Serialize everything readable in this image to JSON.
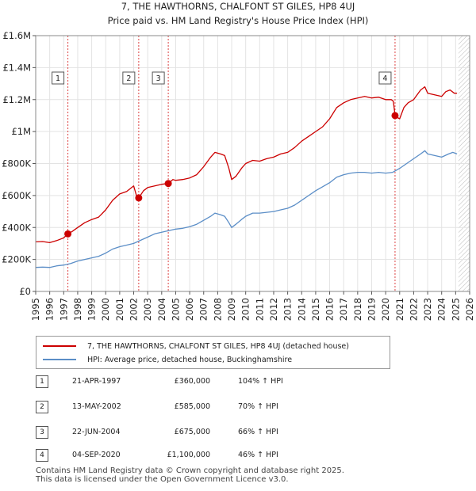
{
  "chart_data": {
    "type": "line",
    "title": "7, THE HAWTHORNS, CHALFONT ST GILES, HP8 4UJ",
    "subtitle": "Price paid vs. HM Land Registry's House Price Index (HPI)",
    "xlim": [
      1995,
      2026
    ],
    "ylim": [
      0,
      1600000
    ],
    "x_ticks": [
      "1995",
      "1996",
      "1997",
      "1998",
      "1999",
      "2000",
      "2001",
      "2002",
      "2003",
      "2004",
      "2005",
      "2006",
      "2007",
      "2008",
      "2009",
      "2010",
      "2011",
      "2012",
      "2013",
      "2014",
      "2015",
      "2016",
      "2017",
      "2018",
      "2019",
      "2020",
      "2021",
      "2022",
      "2023",
      "2024",
      "2025",
      "2026"
    ],
    "y_ticks": [
      {
        "value": 0,
        "label": "£0"
      },
      {
        "value": 200000,
        "label": "£200K"
      },
      {
        "value": 400000,
        "label": "£400K"
      },
      {
        "value": 600000,
        "label": "£600K"
      },
      {
        "value": 800000,
        "label": "£800K"
      },
      {
        "value": 1000000,
        "label": "£1M"
      },
      {
        "value": 1200000,
        "label": "£1.2M"
      },
      {
        "value": 1400000,
        "label": "£1.4M"
      },
      {
        "value": 1600000,
        "label": "£1.6M"
      }
    ],
    "grid": true,
    "future_hatch_from": 2025.2,
    "series": [
      {
        "name": "7, THE HAWTHORNS, CHALFONT ST GILES, HP8 4UJ (detached house)",
        "color": "#cc0000",
        "points": [
          [
            1995.0,
            310000
          ],
          [
            1995.5,
            312000
          ],
          [
            1996.0,
            305000
          ],
          [
            1996.5,
            318000
          ],
          [
            1997.0,
            335000
          ],
          [
            1997.3,
            360000
          ],
          [
            1997.6,
            375000
          ],
          [
            1998.0,
            400000
          ],
          [
            1998.5,
            430000
          ],
          [
            1999.0,
            450000
          ],
          [
            1999.5,
            465000
          ],
          [
            2000.0,
            510000
          ],
          [
            2000.5,
            570000
          ],
          [
            2001.0,
            610000
          ],
          [
            2001.5,
            625000
          ],
          [
            2002.0,
            660000
          ],
          [
            2002.2,
            600000
          ],
          [
            2002.36,
            585000
          ],
          [
            2002.7,
            630000
          ],
          [
            2003.0,
            650000
          ],
          [
            2003.5,
            660000
          ],
          [
            2004.0,
            670000
          ],
          [
            2004.47,
            675000
          ],
          [
            2004.8,
            700000
          ],
          [
            2005.0,
            695000
          ],
          [
            2005.5,
            700000
          ],
          [
            2006.0,
            710000
          ],
          [
            2006.5,
            730000
          ],
          [
            2007.0,
            780000
          ],
          [
            2007.5,
            840000
          ],
          [
            2007.8,
            870000
          ],
          [
            2008.2,
            860000
          ],
          [
            2008.5,
            850000
          ],
          [
            2008.8,
            770000
          ],
          [
            2009.0,
            700000
          ],
          [
            2009.3,
            720000
          ],
          [
            2009.7,
            770000
          ],
          [
            2010.0,
            800000
          ],
          [
            2010.5,
            820000
          ],
          [
            2011.0,
            815000
          ],
          [
            2011.5,
            830000
          ],
          [
            2012.0,
            840000
          ],
          [
            2012.5,
            860000
          ],
          [
            2013.0,
            870000
          ],
          [
            2013.5,
            900000
          ],
          [
            2014.0,
            940000
          ],
          [
            2014.5,
            970000
          ],
          [
            2015.0,
            1000000
          ],
          [
            2015.5,
            1030000
          ],
          [
            2016.0,
            1080000
          ],
          [
            2016.5,
            1150000
          ],
          [
            2017.0,
            1180000
          ],
          [
            2017.5,
            1200000
          ],
          [
            2018.0,
            1210000
          ],
          [
            2018.5,
            1220000
          ],
          [
            2019.0,
            1210000
          ],
          [
            2019.5,
            1215000
          ],
          [
            2020.0,
            1200000
          ],
          [
            2020.4,
            1200000
          ],
          [
            2020.55,
            1190000
          ],
          [
            2020.67,
            1100000
          ],
          [
            2020.8,
            1090000
          ],
          [
            2021.0,
            1080000
          ],
          [
            2021.3,
            1150000
          ],
          [
            2021.6,
            1180000
          ],
          [
            2022.0,
            1200000
          ],
          [
            2022.5,
            1260000
          ],
          [
            2022.8,
            1280000
          ],
          [
            2023.0,
            1240000
          ],
          [
            2023.5,
            1230000
          ],
          [
            2024.0,
            1220000
          ],
          [
            2024.3,
            1250000
          ],
          [
            2024.6,
            1260000
          ],
          [
            2024.9,
            1240000
          ],
          [
            2025.1,
            1240000
          ]
        ]
      },
      {
        "name": "HPI: Average price, detached house, Buckinghamshire",
        "color": "#5b8ec7",
        "points": [
          [
            1995.0,
            150000
          ],
          [
            1995.5,
            152000
          ],
          [
            1996.0,
            150000
          ],
          [
            1996.5,
            160000
          ],
          [
            1997.0,
            165000
          ],
          [
            1997.5,
            175000
          ],
          [
            1998.0,
            190000
          ],
          [
            1998.5,
            200000
          ],
          [
            1999.0,
            210000
          ],
          [
            1999.5,
            220000
          ],
          [
            2000.0,
            240000
          ],
          [
            2000.5,
            265000
          ],
          [
            2001.0,
            280000
          ],
          [
            2001.5,
            290000
          ],
          [
            2002.0,
            300000
          ],
          [
            2002.5,
            320000
          ],
          [
            2003.0,
            340000
          ],
          [
            2003.5,
            360000
          ],
          [
            2004.0,
            370000
          ],
          [
            2004.5,
            380000
          ],
          [
            2005.0,
            390000
          ],
          [
            2005.5,
            395000
          ],
          [
            2006.0,
            405000
          ],
          [
            2006.5,
            420000
          ],
          [
            2007.0,
            445000
          ],
          [
            2007.5,
            470000
          ],
          [
            2007.8,
            490000
          ],
          [
            2008.2,
            480000
          ],
          [
            2008.5,
            470000
          ],
          [
            2008.8,
            430000
          ],
          [
            2009.0,
            400000
          ],
          [
            2009.3,
            420000
          ],
          [
            2009.7,
            450000
          ],
          [
            2010.0,
            470000
          ],
          [
            2010.5,
            490000
          ],
          [
            2011.0,
            490000
          ],
          [
            2011.5,
            495000
          ],
          [
            2012.0,
            500000
          ],
          [
            2012.5,
            510000
          ],
          [
            2013.0,
            520000
          ],
          [
            2013.5,
            540000
          ],
          [
            2014.0,
            570000
          ],
          [
            2014.5,
            600000
          ],
          [
            2015.0,
            630000
          ],
          [
            2015.5,
            655000
          ],
          [
            2016.0,
            680000
          ],
          [
            2016.5,
            715000
          ],
          [
            2017.0,
            730000
          ],
          [
            2017.5,
            740000
          ],
          [
            2018.0,
            745000
          ],
          [
            2018.5,
            745000
          ],
          [
            2019.0,
            740000
          ],
          [
            2019.5,
            745000
          ],
          [
            2020.0,
            740000
          ],
          [
            2020.5,
            745000
          ],
          [
            2021.0,
            770000
          ],
          [
            2021.5,
            800000
          ],
          [
            2022.0,
            830000
          ],
          [
            2022.5,
            860000
          ],
          [
            2022.8,
            880000
          ],
          [
            2023.0,
            860000
          ],
          [
            2023.5,
            850000
          ],
          [
            2024.0,
            840000
          ],
          [
            2024.5,
            860000
          ],
          [
            2024.8,
            870000
          ],
          [
            2025.1,
            860000
          ]
        ]
      }
    ],
    "sales": [
      {
        "num": "1",
        "year": 1997.3,
        "price": 360000,
        "date": "21-APR-1997",
        "price_label": "£360,000",
        "hpi": "104% ↑ HPI"
      },
      {
        "num": "2",
        "year": 2002.36,
        "price": 585000,
        "date": "13-MAY-2002",
        "price_label": "£585,000",
        "hpi": "70% ↑ HPI"
      },
      {
        "num": "3",
        "year": 2004.47,
        "price": 675000,
        "date": "22-JUN-2004",
        "price_label": "£675,000",
        "hpi": "66% ↑ HPI"
      },
      {
        "num": "4",
        "year": 2020.67,
        "price": 1100000,
        "date": "04-SEP-2020",
        "price_label": "£1,100,000",
        "hpi": "46% ↑ HPI"
      }
    ],
    "legend_position": "bottom"
  },
  "legend": {
    "property_label": "7, THE HAWTHORNS, CHALFONT ST GILES, HP8 4UJ (detached house)",
    "hpi_label": "HPI: Average price, detached house, Buckinghamshire",
    "property_color": "#cc0000",
    "hpi_color": "#5b8ec7"
  },
  "footer": {
    "line1": "Contains HM Land Registry data © Crown copyright and database right 2025.",
    "line2": "This data is licensed under the Open Government Licence v3.0."
  }
}
